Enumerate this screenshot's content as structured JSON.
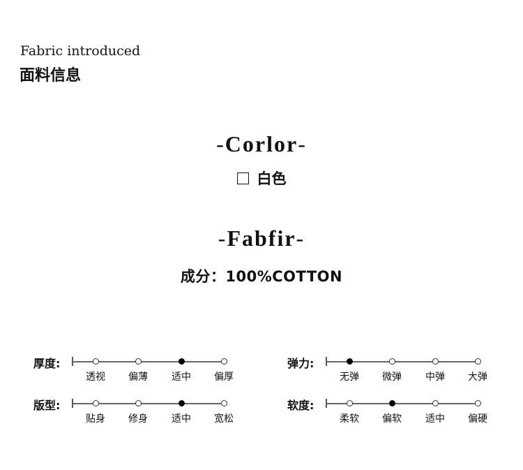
{
  "header": {
    "title_en": "Fabric introduced",
    "title_cn": "面料信息"
  },
  "color_section": {
    "heading": "Corlor",
    "swatch_color": "#ffffff",
    "value": "白色"
  },
  "fabric_section": {
    "heading": "Fabfir",
    "composition": "成分：100%COTTON"
  },
  "scales": [
    {
      "label": "厚度:",
      "options": [
        "透视",
        "偏薄",
        "适中",
        "偏厚"
      ],
      "selected": 2
    },
    {
      "label": "弹力:",
      "options": [
        "无弹",
        "微弹",
        "中弹",
        "大弹"
      ],
      "selected": 0
    },
    {
      "label": "版型:",
      "options": [
        "贴身",
        "修身",
        "适中",
        "宽松"
      ],
      "selected": 2
    },
    {
      "label": "软度:",
      "options": [
        "柔软",
        "偏软",
        "适中",
        "偏硬"
      ],
      "selected": 1
    }
  ]
}
